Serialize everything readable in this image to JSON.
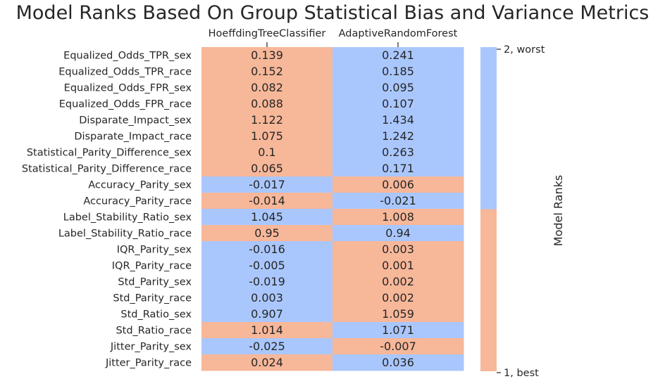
{
  "chart_data": {
    "type": "heatmap",
    "title": "Model Ranks Based On Group Statistical Bias and Variance Metrics",
    "columns": [
      "HoeffdingTreeClassifier",
      "AdaptiveRandomForest"
    ],
    "rows": [
      "Equalized_Odds_TPR_sex",
      "Equalized_Odds_TPR_race",
      "Equalized_Odds_FPR_sex",
      "Equalized_Odds_FPR_race",
      "Disparate_Impact_sex",
      "Disparate_Impact_race",
      "Statistical_Parity_Difference_sex",
      "Statistical_Parity_Difference_race",
      "Accuracy_Parity_sex",
      "Accuracy_Parity_race",
      "Label_Stability_Ratio_sex",
      "Label_Stability_Ratio_race",
      "IQR_Parity_sex",
      "IQR_Parity_race",
      "Std_Parity_sex",
      "Std_Parity_race",
      "Std_Ratio_sex",
      "Std_Ratio_race",
      "Jitter_Parity_sex",
      "Jitter_Parity_race"
    ],
    "values": [
      [
        "0.139",
        "0.241"
      ],
      [
        "0.152",
        "0.185"
      ],
      [
        "0.082",
        "0.095"
      ],
      [
        "0.088",
        "0.107"
      ],
      [
        "1.122",
        "1.434"
      ],
      [
        "1.075",
        "1.242"
      ],
      [
        "0.1",
        "0.263"
      ],
      [
        "0.065",
        "0.171"
      ],
      [
        "-0.017",
        "0.006"
      ],
      [
        "-0.014",
        "-0.021"
      ],
      [
        "1.045",
        "1.008"
      ],
      [
        "0.95",
        "0.94"
      ],
      [
        "-0.016",
        "0.003"
      ],
      [
        "-0.005",
        "0.001"
      ],
      [
        "-0.019",
        "0.002"
      ],
      [
        "0.003",
        "0.002"
      ],
      [
        "0.907",
        "1.059"
      ],
      [
        "1.014",
        "1.071"
      ],
      [
        "-0.025",
        "-0.007"
      ],
      [
        "0.024",
        "0.036"
      ]
    ],
    "ranks": [
      [
        1,
        2
      ],
      [
        1,
        2
      ],
      [
        1,
        2
      ],
      [
        1,
        2
      ],
      [
        1,
        2
      ],
      [
        1,
        2
      ],
      [
        1,
        2
      ],
      [
        1,
        2
      ],
      [
        2,
        1
      ],
      [
        1,
        2
      ],
      [
        2,
        1
      ],
      [
        1,
        2
      ],
      [
        2,
        1
      ],
      [
        2,
        1
      ],
      [
        2,
        1
      ],
      [
        2,
        1
      ],
      [
        2,
        1
      ],
      [
        1,
        2
      ],
      [
        2,
        1
      ],
      [
        1,
        2
      ]
    ],
    "colorbar": {
      "label": "Model Ranks",
      "ticks": [
        "2, worst",
        "1, best"
      ],
      "colors": {
        "1": "#f7b799",
        "2": "#aac7fd"
      }
    },
    "x_axis_position": "top"
  }
}
